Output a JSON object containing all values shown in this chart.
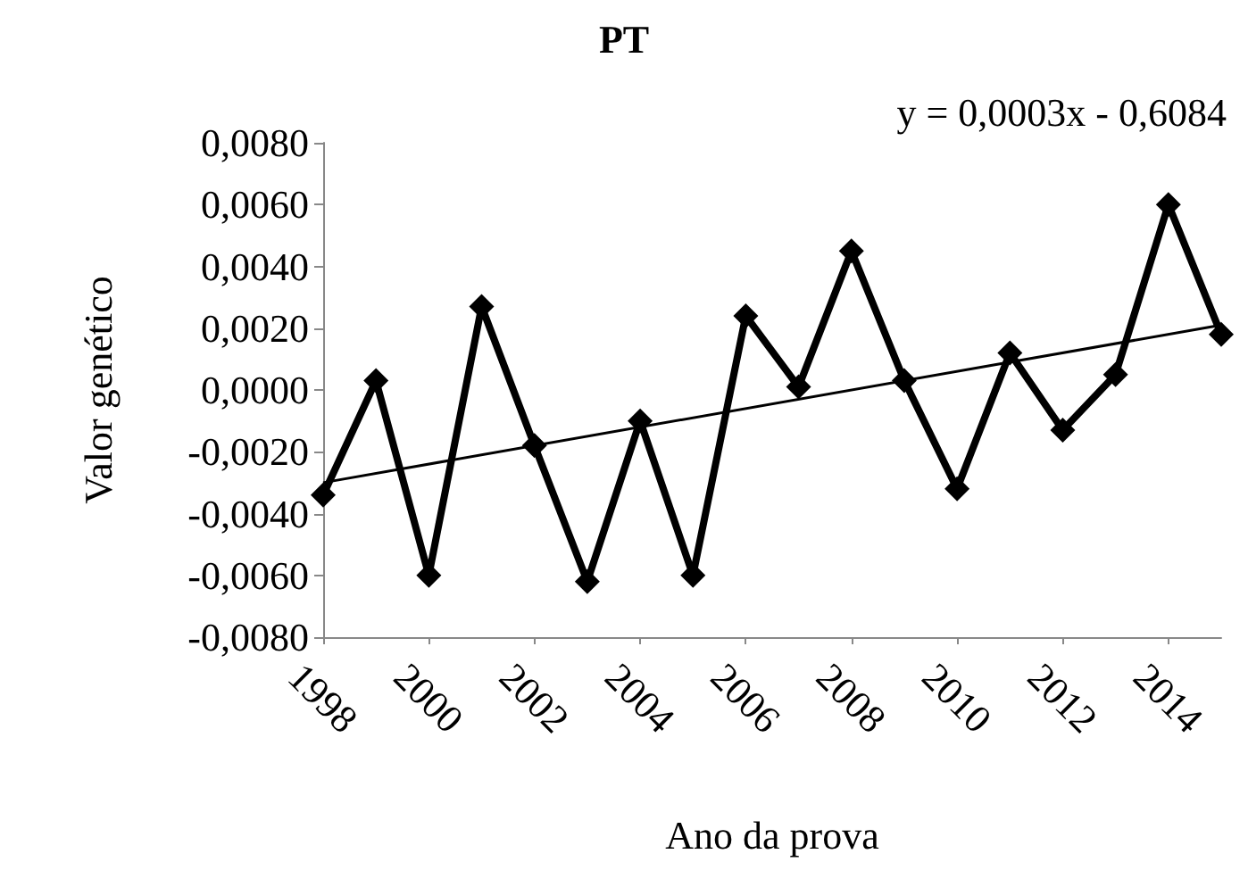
{
  "chart_data": {
    "type": "line",
    "title": "PT",
    "xlabel": "Ano da prova",
    "ylabel": "Valor genético",
    "annotations": [
      "y = 0,0003x - 0,6084"
    ],
    "x": [
      1998,
      1999,
      2000,
      2001,
      2002,
      2003,
      2004,
      2005,
      2006,
      2007,
      2008,
      2009,
      2010,
      2011,
      2012,
      2013,
      2014,
      2015
    ],
    "series": [
      {
        "type": "line",
        "color": "#000000",
        "marker": "none",
        "x": [
          1998,
          2015
        ],
        "values": [
          -0.003,
          0.0021
        ]
      },
      {
        "color": "#000000",
        "marker": "diamond",
        "values": [
          -0.0034,
          0.0003,
          -0.006,
          0.0027,
          -0.0018,
          -0.0062,
          -0.001,
          -0.006,
          0.0024,
          0.0001,
          0.0045,
          0.0003,
          -0.0032,
          0.0012,
          -0.0013,
          0.0005,
          0.006,
          0.0018
        ]
      }
    ],
    "xlim": [
      1998,
      2015
    ],
    "xticks": [
      1998,
      2000,
      2002,
      2004,
      2006,
      2008,
      2010,
      2012,
      2014
    ],
    "ylim": [
      -0.008,
      0.008
    ],
    "yticks": [
      {
        "value": -0.008,
        "label": "-0,0080"
      },
      {
        "value": -0.006,
        "label": "-0,0060"
      },
      {
        "value": -0.004,
        "label": "-0,0040"
      },
      {
        "value": -0.002,
        "label": "-0,0020"
      },
      {
        "value": 0,
        "label": "0,0000"
      },
      {
        "value": 0.002,
        "label": "0,0020"
      },
      {
        "value": 0.004,
        "label": "0,0040"
      },
      {
        "value": 0.006,
        "label": "0,0060"
      },
      {
        "value": 0.008,
        "label": "0,0080"
      }
    ],
    "grid": false
  }
}
